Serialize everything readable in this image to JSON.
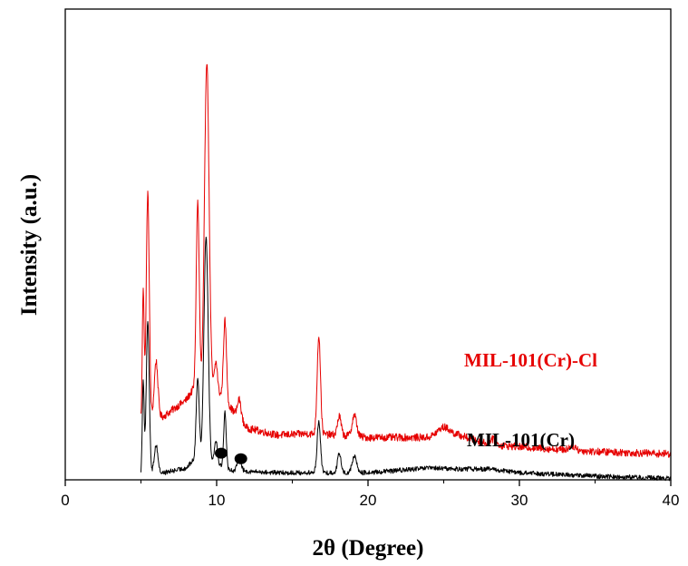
{
  "chart_data": {
    "type": "line",
    "title": "",
    "xlabel": "2θ (Degree)",
    "ylabel": "Intensity (a.u.)",
    "xlim": [
      0,
      40
    ],
    "xticks": [
      0,
      10,
      20,
      30,
      40
    ],
    "xtick_labels": [
      "0",
      "10",
      "20",
      "30",
      "40"
    ],
    "yticks_shown": false,
    "grid": false,
    "legend": "inline labels",
    "series": [
      {
        "name": "MIL-101(Cr)-Cl",
        "color": "#e60000",
        "baseline": [
          [
            5.0,
            12.5
          ],
          [
            6.5,
            13.5
          ],
          [
            8,
            17
          ],
          [
            8.4,
            19
          ],
          [
            10,
            19
          ],
          [
            11,
            15
          ],
          [
            12,
            11
          ],
          [
            14,
            9.5
          ],
          [
            16,
            9.8
          ],
          [
            18,
            9.5
          ],
          [
            20,
            9
          ],
          [
            24,
            9
          ],
          [
            25,
            9.7
          ],
          [
            26,
            9.5
          ],
          [
            28,
            7.5
          ],
          [
            30,
            7
          ],
          [
            35,
            6
          ],
          [
            40,
            5.5
          ]
        ],
        "peaks": [
          [
            5.15,
            28,
            0.06
          ],
          [
            5.45,
            48,
            0.1
          ],
          [
            6.0,
            12,
            0.12
          ],
          [
            8.75,
            40,
            0.1
          ],
          [
            9.35,
            70,
            0.15
          ],
          [
            9.95,
            6,
            0.1
          ],
          [
            10.55,
            17,
            0.1
          ],
          [
            11.5,
            4,
            0.12
          ],
          [
            16.75,
            21,
            0.11
          ],
          [
            18.1,
            4,
            0.12
          ],
          [
            19.1,
            4.5,
            0.15
          ],
          [
            25.0,
            1.5,
            0.4
          ],
          [
            28.2,
            1.2,
            0.2
          ],
          [
            33.5,
            1,
            0.2
          ]
        ],
        "noise": 0.8
      },
      {
        "name": "MIL-101(Cr)",
        "color": "#000000",
        "baseline": [
          [
            5.0,
            1.2
          ],
          [
            6.5,
            1.5
          ],
          [
            8,
            2.5
          ],
          [
            8.4,
            4
          ],
          [
            10,
            3.5
          ],
          [
            11,
            2
          ],
          [
            12,
            1.8
          ],
          [
            14,
            1.5
          ],
          [
            16,
            1.5
          ],
          [
            20,
            1.5
          ],
          [
            24,
            2.5
          ],
          [
            26,
            2.3
          ],
          [
            28,
            2.3
          ],
          [
            30,
            1.5
          ],
          [
            35,
            0.8
          ],
          [
            40,
            0.3
          ]
        ],
        "peaks": [
          [
            5.15,
            20,
            0.06
          ],
          [
            5.45,
            32,
            0.1
          ],
          [
            6.0,
            6,
            0.12
          ],
          [
            8.75,
            18,
            0.1
          ],
          [
            9.3,
            48,
            0.14
          ],
          [
            9.95,
            5,
            0.1
          ],
          [
            10.55,
            12,
            0.08
          ],
          [
            11.5,
            3,
            0.12
          ],
          [
            16.75,
            11,
            0.11
          ],
          [
            18.1,
            4,
            0.12
          ],
          [
            19.1,
            3.5,
            0.15
          ]
        ],
        "noise": 0.5
      }
    ],
    "markers": [
      {
        "x": 10.3,
        "series": "MIL-101(Cr)",
        "symbol": "filled circle"
      },
      {
        "x": 11.6,
        "series": "MIL-101(Cr)",
        "symbol": "filled circle"
      }
    ]
  }
}
